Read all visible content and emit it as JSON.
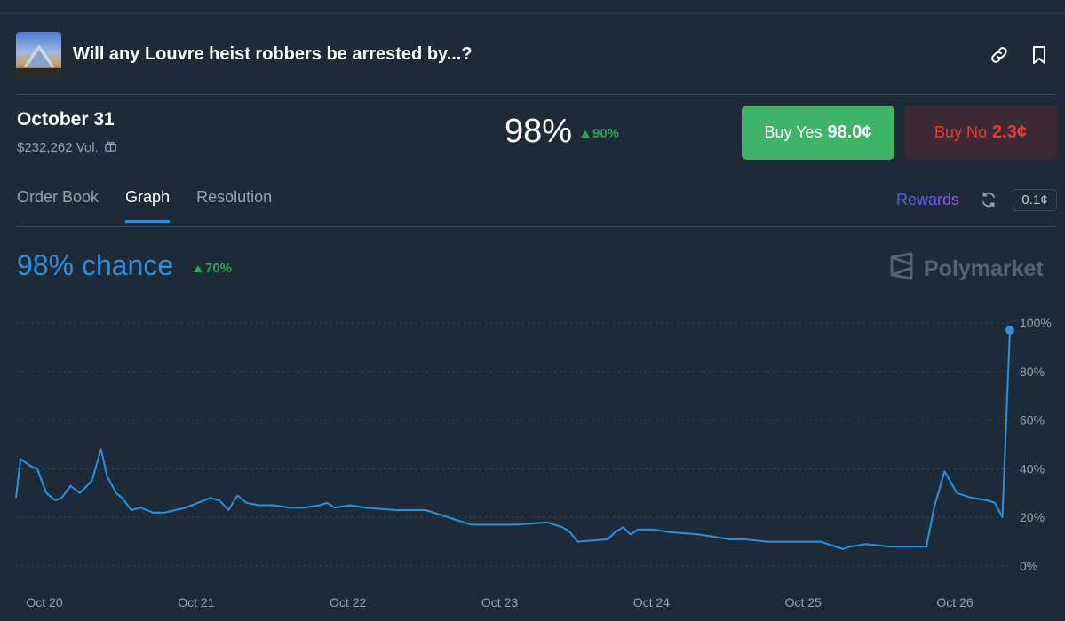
{
  "market": {
    "title": "Will any Louvre heist robbers be arrested by...?",
    "date": "October 31",
    "volume": "$232,262 Vol.",
    "price_pct": "98%",
    "price_delta": "90%",
    "buy_yes_label": "Buy Yes",
    "buy_yes_price": "98.0¢",
    "buy_no_label": "Buy No",
    "buy_no_price": "2.3¢"
  },
  "tabs": [
    {
      "label": "Order Book"
    },
    {
      "label": "Graph"
    },
    {
      "label": "Resolution"
    }
  ],
  "toolbar": {
    "rewards_label": "Rewards",
    "tick_size": "0.1¢"
  },
  "graph": {
    "chance_label": "98% chance",
    "chance_delta": "70%",
    "brand": "Polymarket"
  },
  "icons": {
    "link": "link-icon",
    "bookmark": "bookmark-icon",
    "gift": "gift-icon",
    "refresh": "refresh-icon",
    "logo": "polymarket-logo-icon"
  },
  "colors": {
    "line": "#2f8fda",
    "yes": "#3db468",
    "no": "#e23d3d",
    "up": "#2fa25b"
  },
  "chart_data": {
    "type": "line",
    "x_tick_labels": [
      "Oct 20",
      "Oct 21",
      "Oct 22",
      "Oct 23",
      "Oct 24",
      "Oct 25",
      "Oct 26"
    ],
    "y_tick_labels": [
      "100%",
      "80%",
      "60%",
      "40%",
      "20%",
      "0%"
    ],
    "ylim": [
      0,
      100
    ],
    "xlim": [
      0,
      6.55
    ],
    "grid": true,
    "series": [
      {
        "x": [
          0,
          0.03,
          0.1,
          0.14,
          0.2,
          0.26,
          0.3,
          0.36,
          0.42,
          0.5,
          0.56,
          0.6,
          0.66,
          0.7,
          0.76,
          0.82,
          0.9,
          0.98,
          1.05,
          1.12,
          1.2,
          1.28,
          1.34,
          1.4,
          1.46,
          1.52,
          1.6,
          1.7,
          1.8,
          1.9,
          2.0,
          2.05,
          2.1,
          2.2,
          2.3,
          2.5,
          2.7,
          2.85,
          2.95,
          3.0,
          3.1,
          3.3,
          3.5,
          3.6,
          3.65,
          3.7,
          3.9,
          3.95,
          4.0,
          4.05,
          4.1,
          4.2,
          4.3,
          4.5,
          4.7,
          4.8,
          4.95,
          5.1,
          5.3,
          5.45,
          5.5,
          5.6,
          5.75,
          5.85,
          6.0,
          6.05,
          6.12,
          6.2,
          6.3,
          6.4,
          6.45,
          6.5,
          6.55
        ],
        "y": [
          28,
          44,
          41,
          40,
          30,
          27,
          28,
          33,
          30,
          35,
          48,
          37,
          30,
          28,
          23,
          24,
          22,
          22,
          23,
          24,
          26,
          28,
          27,
          23,
          29,
          26,
          25,
          25,
          24,
          24,
          25,
          26,
          24,
          25,
          24,
          23,
          23,
          20,
          18,
          17,
          17,
          17,
          18,
          16,
          14,
          10,
          11,
          14,
          16,
          13,
          15,
          15,
          14,
          13,
          11,
          11,
          10,
          10,
          10,
          7,
          8,
          9,
          8,
          8,
          8,
          24,
          39,
          30,
          28,
          27,
          26,
          20,
          97
        ]
      }
    ],
    "annotations": []
  }
}
